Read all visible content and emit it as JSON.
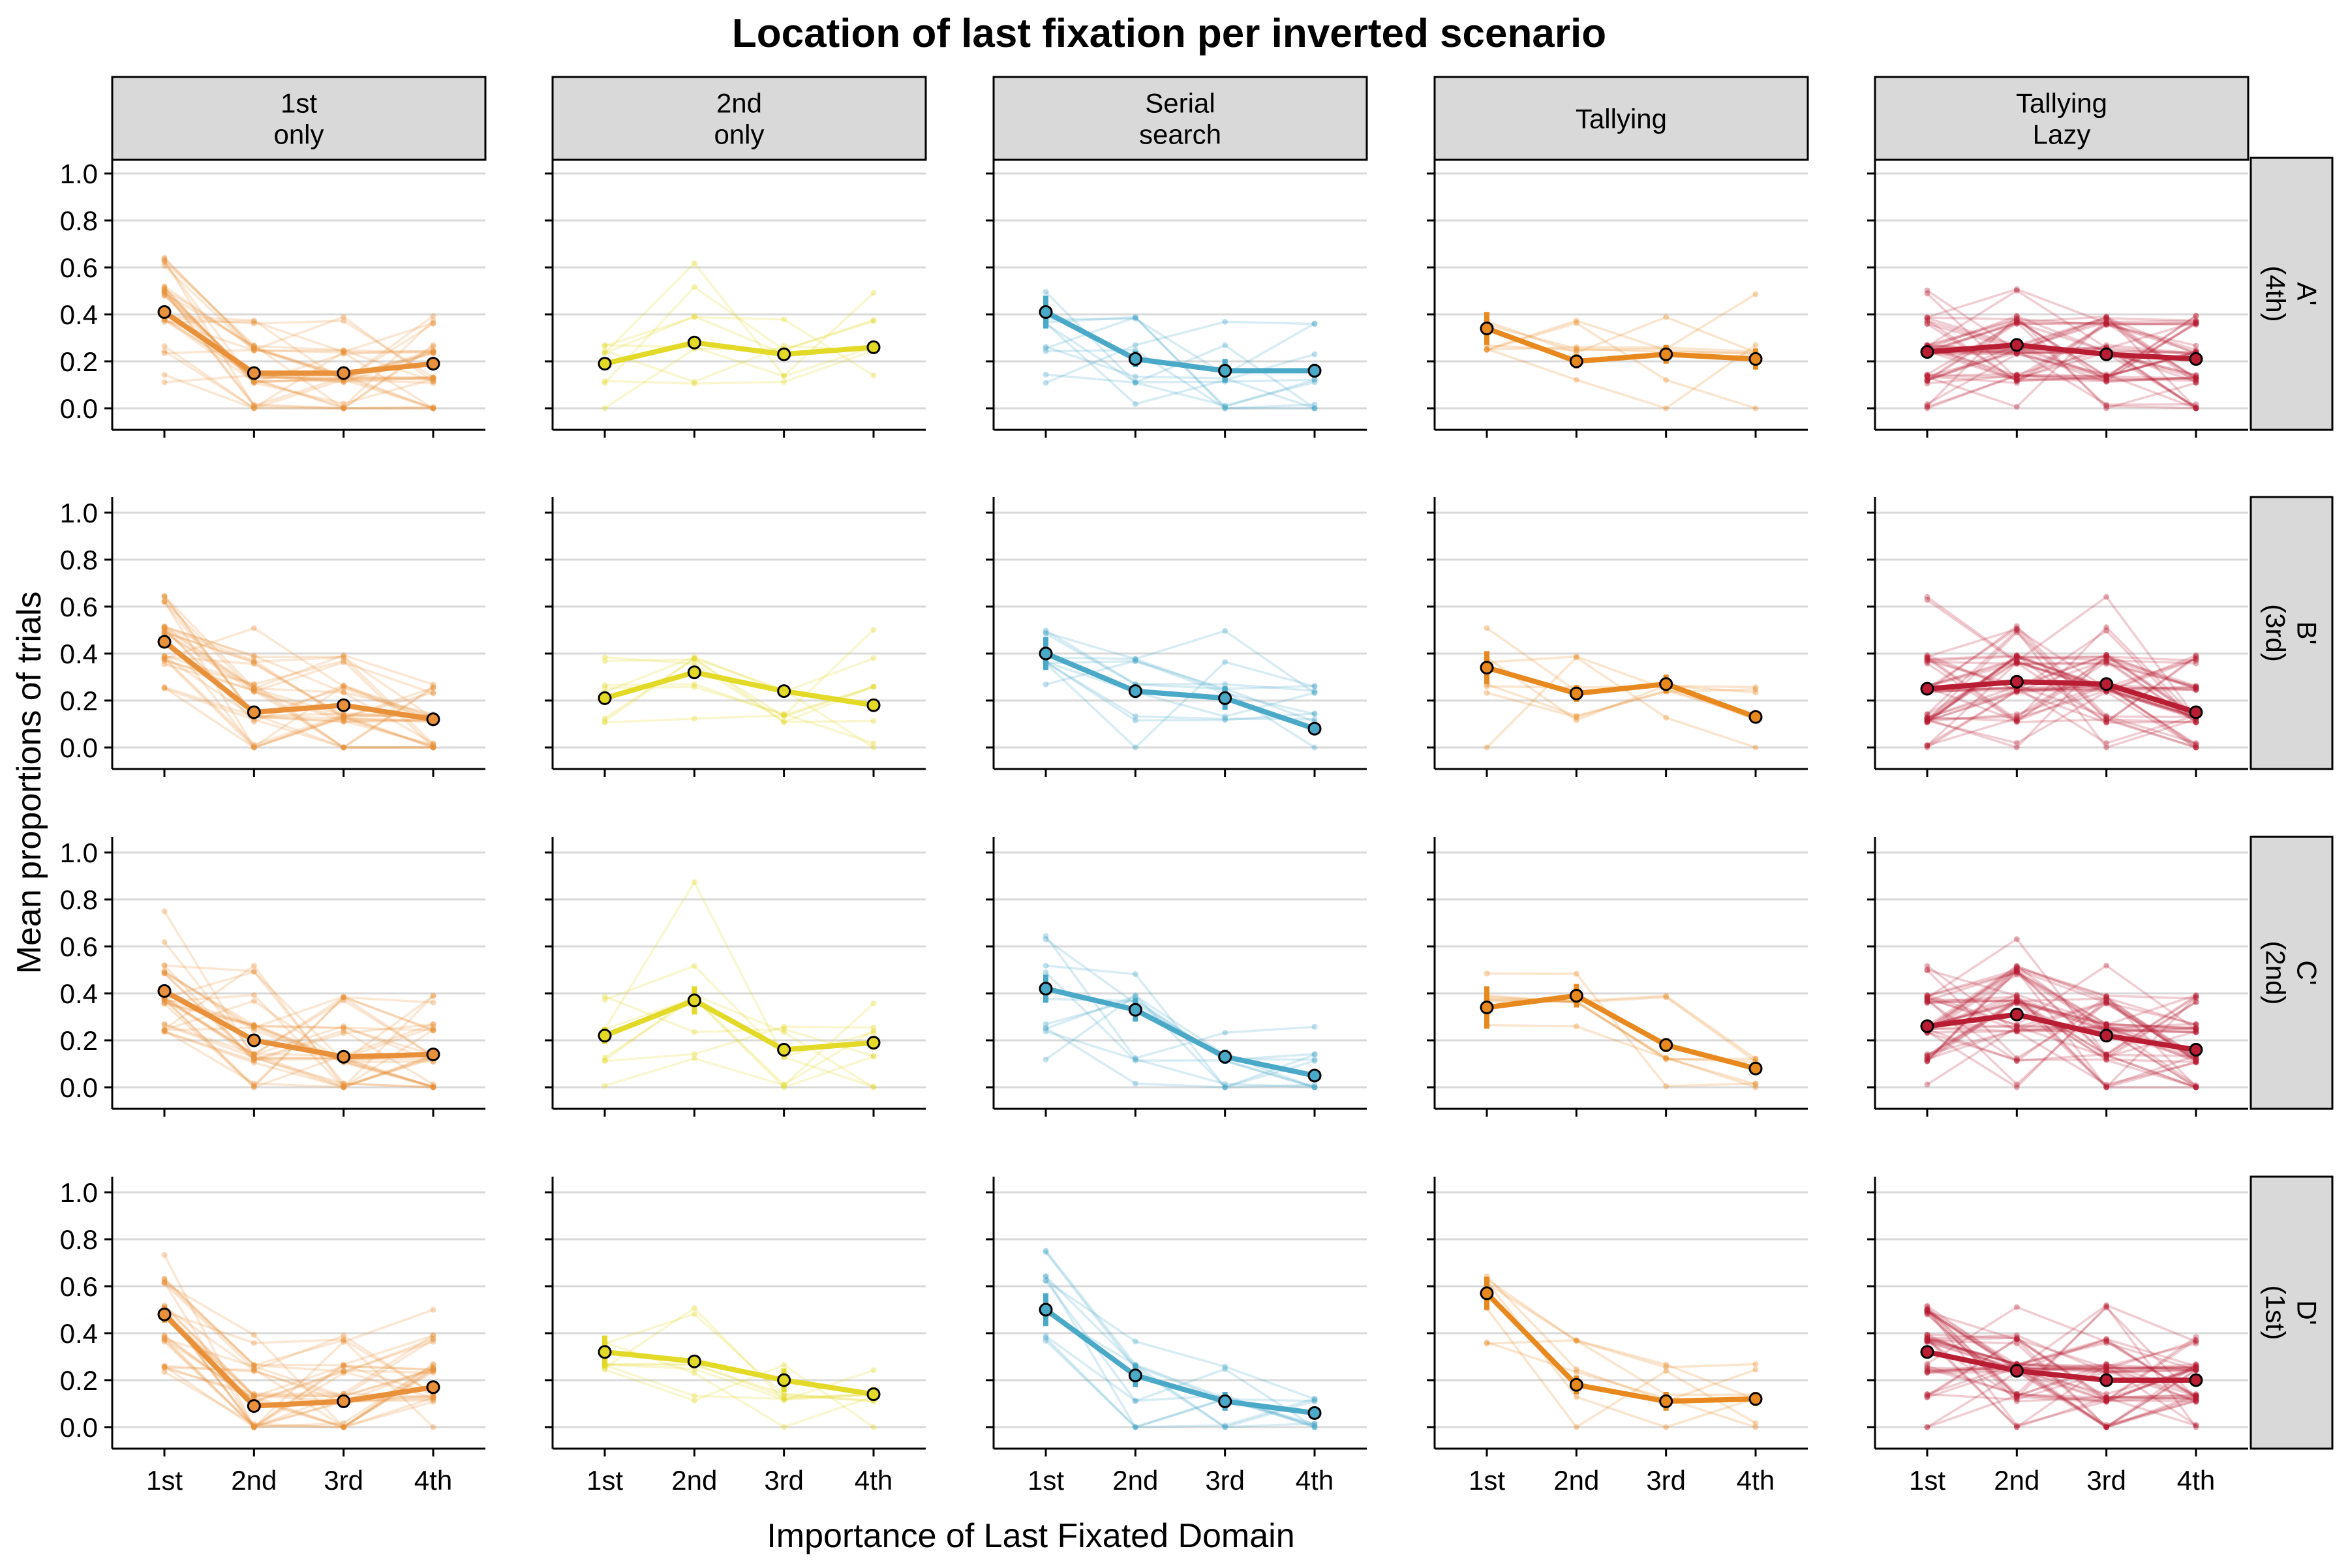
{
  "chart_data": {
    "type": "line",
    "title": "Location of last fixation per inverted scenario",
    "xlabel": "Importance of Last Fixated Domain",
    "ylabel": "Mean proportions of trials",
    "categories": [
      "1st",
      "2nd",
      "3rd",
      "4th"
    ],
    "ylim": [
      0,
      1.0
    ],
    "yticks": [
      "0.0",
      "0.2",
      "0.4",
      "0.6",
      "0.8",
      "1.0"
    ],
    "grid": "horizontal",
    "legend": "none",
    "columns": [
      {
        "label_lines": [
          "1st",
          "only"
        ],
        "color": "#E8913A"
      },
      {
        "label_lines": [
          "2nd",
          "only"
        ],
        "color": "#E3D927"
      },
      {
        "label_lines": [
          "Serial",
          "search"
        ],
        "color": "#4BA9C8"
      },
      {
        "label_lines": [
          "Tallying"
        ],
        "color": "#E8891F"
      },
      {
        "label_lines": [
          "Tallying",
          "Lazy"
        ],
        "color": "#B81D34"
      }
    ],
    "rows": [
      {
        "label_lines": [
          "A'",
          "(4th)"
        ]
      },
      {
        "label_lines": [
          "B'",
          "(3rd)"
        ]
      },
      {
        "label_lines": [
          "C'",
          "(2nd)"
        ]
      },
      {
        "label_lines": [
          "D'",
          "(1st)"
        ]
      }
    ],
    "panels": [
      {
        "row": 0,
        "col": 0,
        "mean": [
          0.41,
          0.15,
          0.15,
          0.19
        ],
        "error": [
          0.025,
          0.015,
          0.015,
          0.02
        ],
        "n_participants": 30
      },
      {
        "row": 0,
        "col": 1,
        "mean": [
          0.19,
          0.28,
          0.23,
          0.26
        ],
        "error": [
          0.02,
          0.025,
          0.02,
          0.025
        ],
        "n_participants": 8
      },
      {
        "row": 0,
        "col": 2,
        "mean": [
          0.41,
          0.21,
          0.16,
          0.16
        ],
        "error": [
          0.07,
          0.035,
          0.05,
          0.03
        ],
        "n_participants": 10
      },
      {
        "row": 0,
        "col": 3,
        "mean": [
          0.34,
          0.2,
          0.23,
          0.21
        ],
        "error": [
          0.07,
          0.03,
          0.04,
          0.045
        ],
        "n_participants": 7
      },
      {
        "row": 0,
        "col": 4,
        "mean": [
          0.24,
          0.27,
          0.23,
          0.21
        ],
        "error": [
          0.015,
          0.015,
          0.012,
          0.012
        ],
        "n_participants": 45
      },
      {
        "row": 1,
        "col": 0,
        "mean": [
          0.45,
          0.15,
          0.18,
          0.12
        ],
        "error": [
          0.025,
          0.015,
          0.015,
          0.015
        ],
        "n_participants": 30
      },
      {
        "row": 1,
        "col": 1,
        "mean": [
          0.21,
          0.32,
          0.24,
          0.18
        ],
        "error": [
          0.02,
          0.025,
          0.02,
          0.02
        ],
        "n_participants": 8
      },
      {
        "row": 1,
        "col": 2,
        "mean": [
          0.4,
          0.24,
          0.21,
          0.08
        ],
        "error": [
          0.07,
          0.03,
          0.05,
          0.015
        ],
        "n_participants": 10
      },
      {
        "row": 1,
        "col": 3,
        "mean": [
          0.34,
          0.23,
          0.27,
          0.13
        ],
        "error": [
          0.07,
          0.035,
          0.04,
          0.02
        ],
        "n_participants": 7
      },
      {
        "row": 1,
        "col": 4,
        "mean": [
          0.25,
          0.28,
          0.27,
          0.15
        ],
        "error": [
          0.015,
          0.015,
          0.015,
          0.01
        ],
        "n_participants": 45
      },
      {
        "row": 2,
        "col": 0,
        "mean": [
          0.41,
          0.2,
          0.13,
          0.14
        ],
        "error": [
          0.025,
          0.015,
          0.012,
          0.015
        ],
        "n_participants": 30
      },
      {
        "row": 2,
        "col": 1,
        "mean": [
          0.22,
          0.37,
          0.16,
          0.19
        ],
        "error": [
          0.035,
          0.06,
          0.02,
          0.03
        ],
        "n_participants": 8
      },
      {
        "row": 2,
        "col": 2,
        "mean": [
          0.42,
          0.33,
          0.13,
          0.05
        ],
        "error": [
          0.06,
          0.05,
          0.03,
          0.012
        ],
        "n_participants": 10
      },
      {
        "row": 2,
        "col": 3,
        "mean": [
          0.34,
          0.39,
          0.18,
          0.08
        ],
        "error": [
          0.09,
          0.05,
          0.03,
          0.01
        ],
        "n_participants": 7
      },
      {
        "row": 2,
        "col": 4,
        "mean": [
          0.26,
          0.31,
          0.22,
          0.16
        ],
        "error": [
          0.015,
          0.02,
          0.015,
          0.01
        ],
        "n_participants": 45
      },
      {
        "row": 3,
        "col": 0,
        "mean": [
          0.48,
          0.09,
          0.11,
          0.17
        ],
        "error": [
          0.035,
          0.012,
          0.015,
          0.02
        ],
        "n_participants": 30
      },
      {
        "row": 3,
        "col": 1,
        "mean": [
          0.32,
          0.28,
          0.2,
          0.14
        ],
        "error": [
          0.07,
          0.02,
          0.05,
          0.03
        ],
        "n_participants": 8
      },
      {
        "row": 3,
        "col": 2,
        "mean": [
          0.5,
          0.22,
          0.11,
          0.06
        ],
        "error": [
          0.07,
          0.05,
          0.04,
          0.015
        ],
        "n_participants": 10
      },
      {
        "row": 3,
        "col": 3,
        "mean": [
          0.57,
          0.18,
          0.11,
          0.12
        ],
        "error": [
          0.07,
          0.04,
          0.04,
          0.03
        ],
        "n_participants": 7
      },
      {
        "row": 3,
        "col": 4,
        "mean": [
          0.32,
          0.24,
          0.2,
          0.2
        ],
        "error": [
          0.02,
          0.02,
          0.02,
          0.025
        ],
        "n_participants": 45
      }
    ]
  }
}
